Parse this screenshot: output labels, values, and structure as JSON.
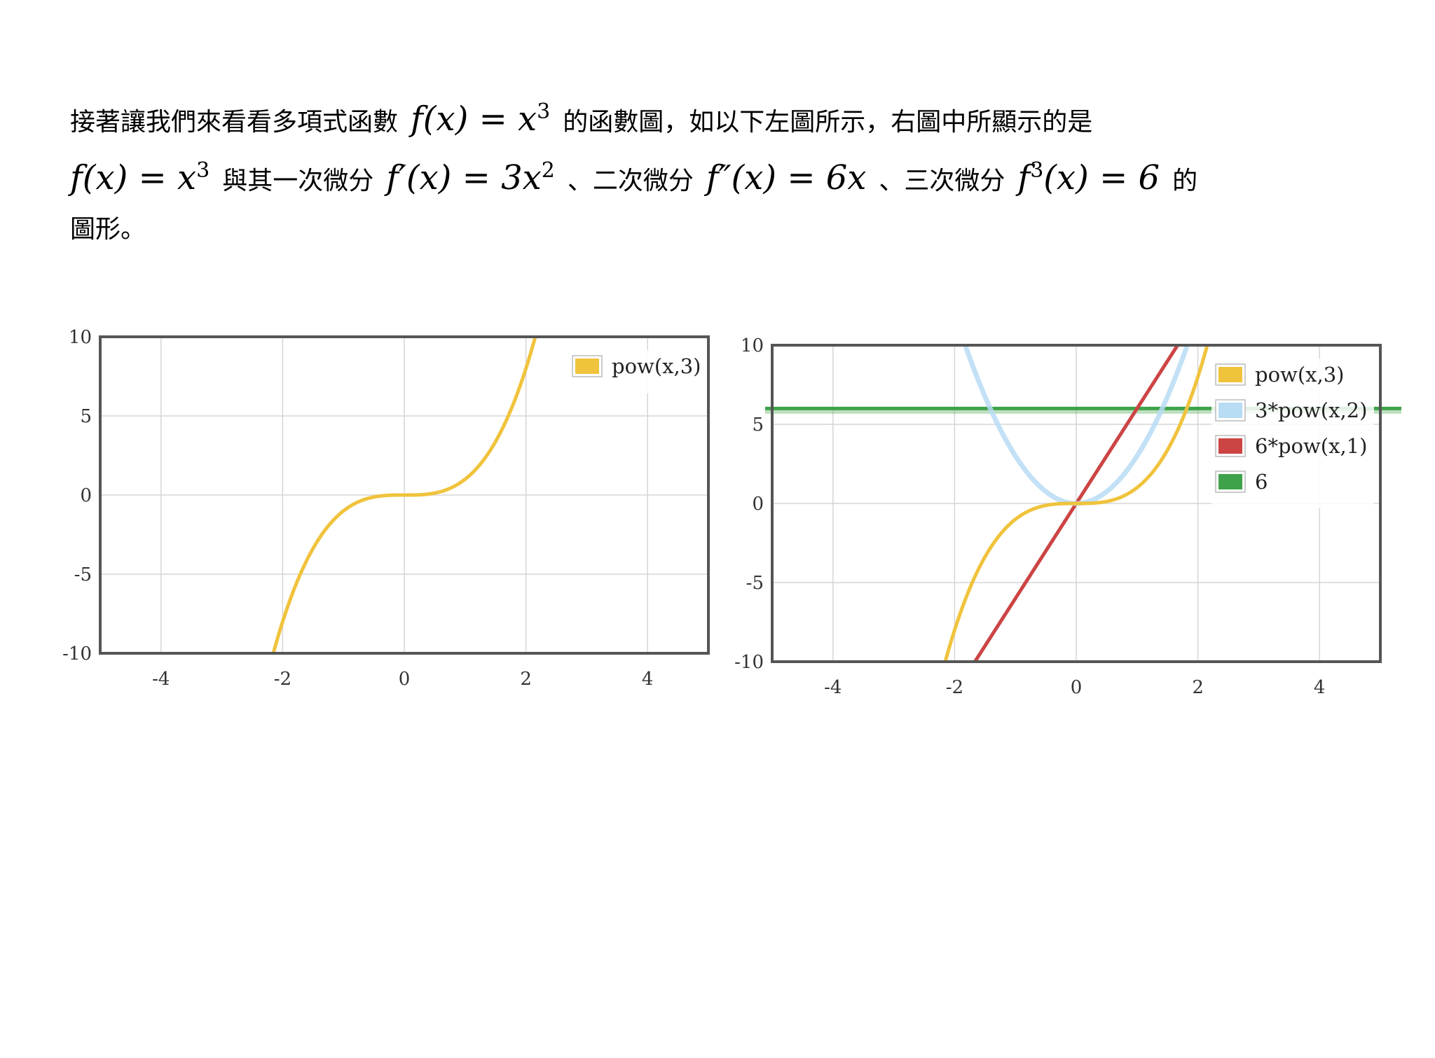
{
  "text": {
    "line1_a": "接著讓我們來看看多項式函數",
    "math_f": "f(x) = x",
    "math_f_exp": "3",
    "line1_b": "的函數圖，如以下左圖所示，右圖中所顯示的是",
    "math_f2": "f(x) = x",
    "math_f2_exp": "3",
    "line2_a": "與其一次微分",
    "math_f1": "f′(x) = 3x",
    "math_f1_exp": "2",
    "line2_b": "、二次微分",
    "math_f2nd": "f″(x) = 6x",
    "line2_c": "、三次微分",
    "math_f3_pre": "f",
    "math_f3_exp": "3",
    "math_f3_post": "(x) = 6",
    "line2_d": "的",
    "line3": "圖形。"
  },
  "chart_data": [
    {
      "type": "line",
      "xlim": [
        -5,
        5
      ],
      "ylim": [
        -10,
        10
      ],
      "x_ticks": [
        "-4",
        "-2",
        "0",
        "2",
        "4"
      ],
      "y_ticks": [
        "10",
        "5",
        "0",
        "-5",
        "-10"
      ],
      "grid": true,
      "legend_placement": "top-right",
      "series": [
        {
          "name": "pow(x,3)",
          "expr": "x^3",
          "color": "#f0c33c"
        }
      ]
    },
    {
      "type": "line",
      "xlim": [
        -5,
        5
      ],
      "ylim": [
        -10,
        10
      ],
      "x_ticks": [
        "-4",
        "-2",
        "0",
        "2",
        "4"
      ],
      "y_ticks": [
        "10",
        "5",
        "0",
        "-5",
        "-10"
      ],
      "grid": true,
      "legend_placement": "top-right",
      "series": [
        {
          "name": "pow(x,3)",
          "expr": "x^3",
          "color": "#f0c33c"
        },
        {
          "name": "3*pow(x,2)",
          "expr": "3x^2",
          "color": "#b8dcf4"
        },
        {
          "name": "6*pow(x,1)",
          "expr": "6x",
          "color": "#cc4444"
        },
        {
          "name": "6",
          "expr": "6",
          "color": "#3fa24a"
        }
      ]
    }
  ]
}
